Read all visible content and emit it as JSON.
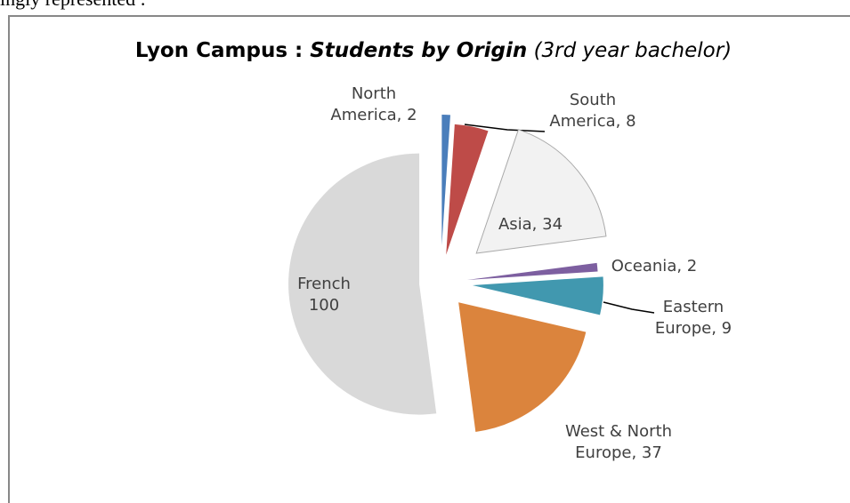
{
  "caption": "ingly represented :",
  "chart_data": {
    "type": "pie",
    "title": [
      "Lyon Campus : ",
      "Students by Origin",
      " (3rd year bachelor)"
    ],
    "values": [
      2,
      8,
      34,
      2,
      9,
      37,
      100
    ],
    "value_labels": [
      "North America, 2",
      "South America, 8",
      "Asia, 34",
      "Oceania, 2",
      "Eastern Europe, 9",
      "West & North Europe, 37",
      "French 100"
    ],
    "colors": [
      "#4a7ebb",
      "#be4b48",
      "#f2f2f2",
      "#7d5fa0",
      "#4198af",
      "#db843d",
      "#d9d9d9"
    ]
  }
}
